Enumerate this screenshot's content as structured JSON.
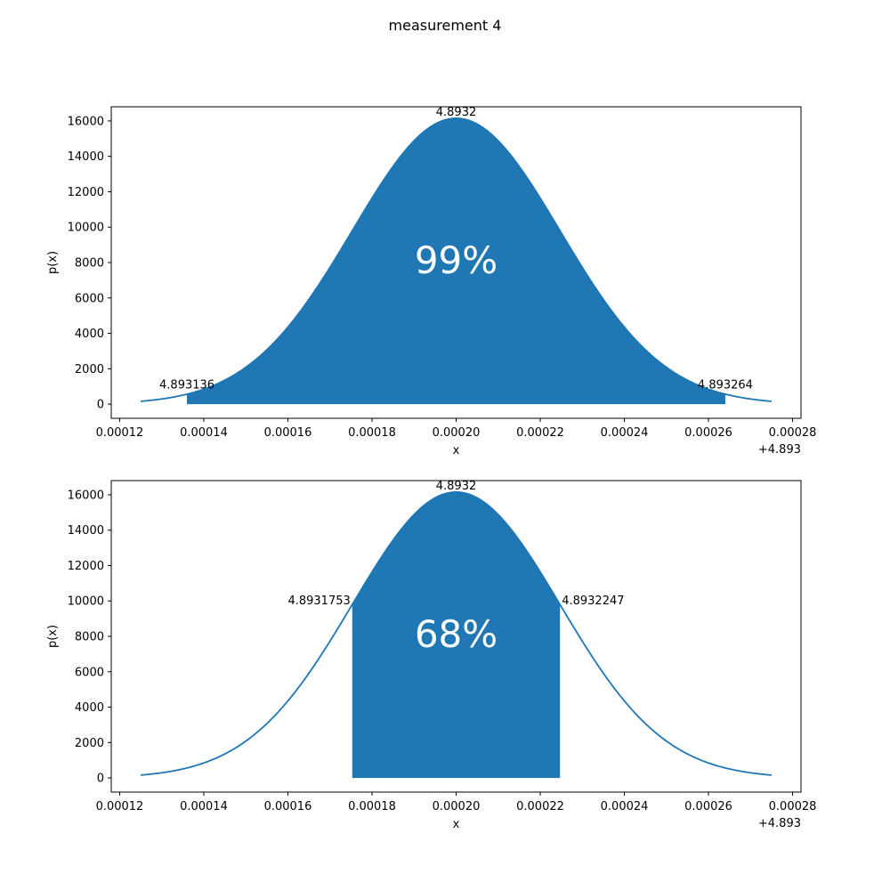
{
  "chart_data": {
    "title": "measurement 4",
    "charts": [
      {
        "type": "area",
        "xlabel": "x",
        "ylabel": "p(x)",
        "x_offset_label": "+4.893",
        "xlim": [
          0.000118,
          0.000282
        ],
        "ylim": [
          -800,
          16800
        ],
        "xticks": [
          0.00012,
          0.00014,
          0.00016,
          0.00018,
          0.0002,
          0.00022,
          0.00024,
          0.00026,
          0.00028
        ],
        "xtick_labels": [
          "0.00012",
          "0.00014",
          "0.00016",
          "0.00018",
          "0.00020",
          "0.00022",
          "0.00024",
          "0.00026",
          "0.00028"
        ],
        "yticks": [
          0,
          2000,
          4000,
          6000,
          8000,
          10000,
          12000,
          14000,
          16000
        ],
        "ytick_labels": [
          "0",
          "2000",
          "4000",
          "6000",
          "8000",
          "10000",
          "12000",
          "14000",
          "16000"
        ],
        "curve": {
          "distribution": "normal",
          "mean": 0.0002,
          "sigma": 2.47e-05,
          "x_range": [
            0.000125,
            0.000275
          ]
        },
        "shaded_interval": [
          0.000136,
          0.000264
        ],
        "shaded_label": "99%",
        "annotations": [
          {
            "text": "4.8932",
            "x": 0.0002,
            "y": 16150
          },
          {
            "text": "4.893136",
            "x": 0.000136,
            "y": 640
          },
          {
            "text": "4.893264",
            "x": 0.000264,
            "y": 640
          }
        ],
        "color": "#1f77b4"
      },
      {
        "type": "area",
        "xlabel": "x",
        "ylabel": "p(x)",
        "x_offset_label": "+4.893",
        "xlim": [
          0.000118,
          0.000282
        ],
        "ylim": [
          -800,
          16800
        ],
        "xticks": [
          0.00012,
          0.00014,
          0.00016,
          0.00018,
          0.0002,
          0.00022,
          0.00024,
          0.00026,
          0.00028
        ],
        "xtick_labels": [
          "0.00012",
          "0.00014",
          "0.00016",
          "0.00018",
          "0.00020",
          "0.00022",
          "0.00024",
          "0.00026",
          "0.00028"
        ],
        "yticks": [
          0,
          2000,
          4000,
          6000,
          8000,
          10000,
          12000,
          14000,
          16000
        ],
        "ytick_labels": [
          "0",
          "2000",
          "4000",
          "6000",
          "8000",
          "10000",
          "12000",
          "14000",
          "16000"
        ],
        "curve": {
          "distribution": "normal",
          "mean": 0.0002,
          "sigma": 2.47e-05,
          "x_range": [
            0.000125,
            0.000275
          ]
        },
        "shaded_interval": [
          0.0001753,
          0.0002247
        ],
        "shaded_label": "68%",
        "annotations": [
          {
            "text": "4.8932",
            "x": 0.0002,
            "y": 16150
          },
          {
            "text": "4.8931753",
            "x": 0.0001753,
            "y": 9800
          },
          {
            "text": "4.8932247",
            "x": 0.0002247,
            "y": 9800
          }
        ],
        "color": "#1f77b4"
      }
    ]
  }
}
